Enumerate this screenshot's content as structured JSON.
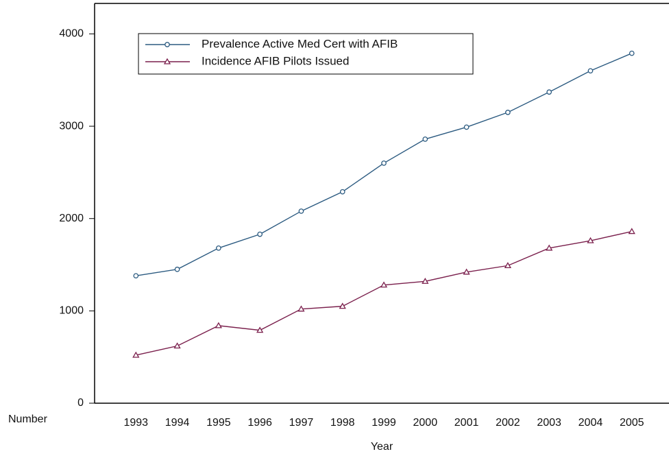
{
  "chart_data": {
    "type": "line",
    "xlabel": "Year",
    "ylabel": "Number",
    "x": [
      1993,
      1994,
      1995,
      1996,
      1997,
      1998,
      1999,
      2000,
      2001,
      2002,
      2003,
      2004,
      2005
    ],
    "series": [
      {
        "name": "Prevalence Active Med Cert with AFIB",
        "color": "#2b5a80",
        "marker": "circle",
        "values": [
          1380,
          1450,
          1680,
          1830,
          2080,
          2290,
          2600,
          2860,
          2990,
          3150,
          3370,
          3600,
          3790
        ]
      },
      {
        "name": "Incidence AFIB Pilots Issued",
        "color": "#7a1f4c",
        "marker": "triangle",
        "values": [
          520,
          620,
          840,
          790,
          1020,
          1050,
          1280,
          1320,
          1420,
          1490,
          1680,
          1760,
          1860
        ]
      }
    ],
    "xlim": [
      1992,
      2005.9
    ],
    "xticks": [
      1993,
      1994,
      1995,
      1996,
      1997,
      1998,
      1999,
      2000,
      2001,
      2002,
      2003,
      2004,
      2005
    ],
    "ylim": [
      0,
      4330
    ],
    "yticks": [
      0,
      1000,
      2000,
      3000,
      4000
    ],
    "legend": "upper left"
  }
}
